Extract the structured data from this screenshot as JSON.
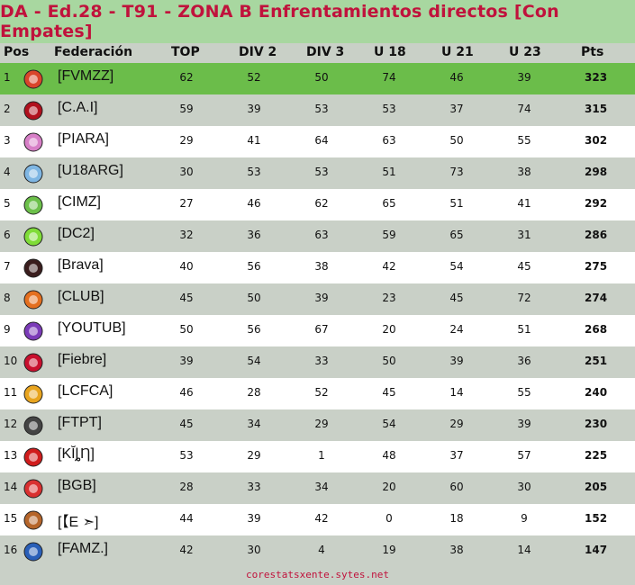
{
  "title": "DA - Ed.28 - T91 - ZONA B Enfrentamientos directos [Con Empates]",
  "headers": {
    "pos": "Pos",
    "fed": "Federación",
    "top": "TOP",
    "div2": "DIV 2",
    "div3": "DIV 3",
    "u18": "U 18",
    "u21": "U 21",
    "u23": "U 23",
    "pts": "Pts"
  },
  "rows": [
    {
      "pos": "1",
      "fed": "[FVMZZ]",
      "top": "62",
      "div2": "52",
      "div3": "50",
      "u18": "74",
      "u21": "46",
      "u23": "39",
      "pts": "323",
      "logo_color": "#d9452b"
    },
    {
      "pos": "2",
      "fed": "[C.A.I]",
      "top": "59",
      "div2": "39",
      "div3": "53",
      "u18": "53",
      "u21": "37",
      "u23": "74",
      "pts": "315",
      "logo_color": "#b0101d"
    },
    {
      "pos": "3",
      "fed": "[PIARA]",
      "top": "29",
      "div2": "41",
      "div3": "64",
      "u18": "63",
      "u21": "50",
      "u23": "55",
      "pts": "302",
      "logo_color": "#d77fc7"
    },
    {
      "pos": "4",
      "fed": "[U18ARG]",
      "top": "30",
      "div2": "53",
      "div3": "53",
      "u18": "51",
      "u21": "73",
      "u23": "38",
      "pts": "298",
      "logo_color": "#7fb6e3"
    },
    {
      "pos": "5",
      "fed": "[CIMZ]",
      "top": "27",
      "div2": "46",
      "div3": "62",
      "u18": "65",
      "u21": "51",
      "u23": "41",
      "pts": "292",
      "logo_color": "#6cc04a"
    },
    {
      "pos": "6",
      "fed": "[DC2]",
      "top": "32",
      "div2": "36",
      "div3": "63",
      "u18": "59",
      "u21": "65",
      "u23": "31",
      "pts": "286",
      "logo_color": "#7fdc38"
    },
    {
      "pos": "7",
      "fed": "[Brava]",
      "top": "40",
      "div2": "56",
      "div3": "38",
      "u18": "42",
      "u21": "54",
      "u23": "45",
      "pts": "275",
      "logo_color": "#3a1d1d"
    },
    {
      "pos": "8",
      "fed": "[CLUB]",
      "top": "45",
      "div2": "50",
      "div3": "39",
      "u18": "23",
      "u21": "45",
      "u23": "72",
      "pts": "274",
      "logo_color": "#e46f1f"
    },
    {
      "pos": "9",
      "fed": "[YOUTUB]",
      "top": "50",
      "div2": "56",
      "div3": "67",
      "u18": "20",
      "u21": "24",
      "u23": "51",
      "pts": "268",
      "logo_color": "#7b3bb8"
    },
    {
      "pos": "10",
      "fed": "[Fiebre]",
      "top": "39",
      "div2": "54",
      "div3": "33",
      "u18": "50",
      "u21": "39",
      "u23": "36",
      "pts": "251",
      "logo_color": "#c8102e"
    },
    {
      "pos": "11",
      "fed": "[LCFCA]",
      "top": "46",
      "div2": "28",
      "div3": "52",
      "u18": "45",
      "u21": "14",
      "u23": "55",
      "pts": "240",
      "logo_color": "#e8a41f"
    },
    {
      "pos": "12",
      "fed": "[FTPT]",
      "top": "45",
      "div2": "34",
      "div3": "29",
      "u18": "54",
      "u21": "29",
      "u23": "39",
      "pts": "230",
      "logo_color": "#444444"
    },
    {
      "pos": "13",
      "fed": "[KĬȴȠ]",
      "top": "53",
      "div2": "29",
      "div3": "1",
      "u18": "48",
      "u21": "37",
      "u23": "57",
      "pts": "225",
      "logo_color": "#d01c1c"
    },
    {
      "pos": "14",
      "fed": "[BGB]",
      "top": "28",
      "div2": "33",
      "div3": "34",
      "u18": "20",
      "u21": "60",
      "u23": "30",
      "pts": "205",
      "logo_color": "#d93030"
    },
    {
      "pos": "15",
      "fed": "[【E ➣]",
      "top": "44",
      "div2": "39",
      "div3": "42",
      "u18": "0",
      "u21": "18",
      "u23": "9",
      "pts": "152",
      "logo_color": "#b5652a"
    },
    {
      "pos": "16",
      "fed": "[FAMZ.]",
      "top": "42",
      "div2": "30",
      "div3": "4",
      "u18": "19",
      "u21": "38",
      "u23": "14",
      "pts": "147",
      "logo_color": "#2a5fb8"
    }
  ],
  "footer": "corestatsxente.sytes.net"
}
